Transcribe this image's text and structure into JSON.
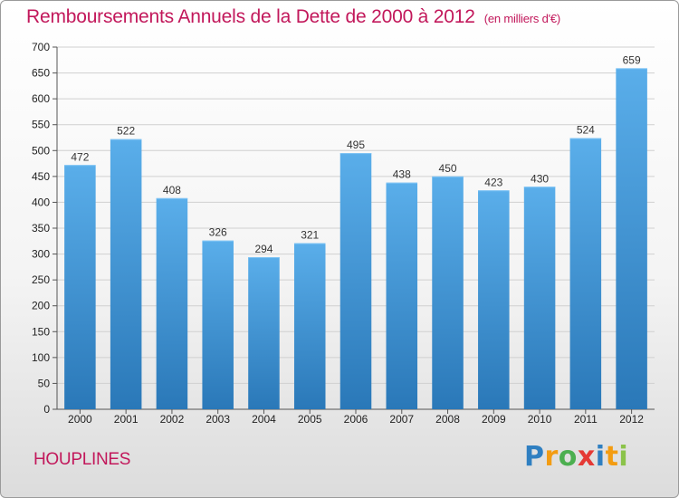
{
  "header": {
    "title": "Remboursements Annuels de la Dette de 2000 à 2012",
    "unit": "(en milliers d'€)"
  },
  "footer": {
    "town": "HOUPLINES",
    "logo": "Proxiti"
  },
  "colors": {
    "title": "#c2185b",
    "bar_top": "#5aaeea",
    "bar_bottom": "#2a78b8"
  },
  "chart_data": {
    "type": "bar",
    "title": "Remboursements Annuels de la Dette de 2000 à 2012",
    "subtitle": "(en milliers d'€)",
    "xlabel": "",
    "ylabel": "",
    "categories": [
      "2000",
      "2001",
      "2002",
      "2003",
      "2004",
      "2005",
      "2006",
      "2007",
      "2008",
      "2009",
      "2010",
      "2011",
      "2012"
    ],
    "values": [
      472,
      522,
      408,
      326,
      294,
      321,
      495,
      438,
      450,
      423,
      430,
      524,
      659
    ],
    "ylim": [
      0,
      700
    ],
    "yticks": [
      0,
      50,
      100,
      150,
      200,
      250,
      300,
      350,
      400,
      450,
      500,
      550,
      600,
      650,
      700
    ],
    "grid": true
  }
}
